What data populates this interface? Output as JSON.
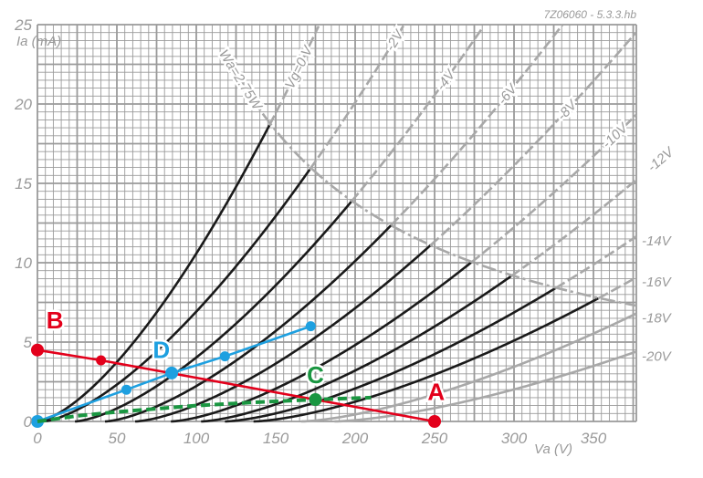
{
  "chart_data": {
    "type": "line",
    "title": "",
    "figure_code": "7Z06060 - 5.3.3.hb",
    "xlabel": "Va (V)",
    "ylabel": "Ia (mA)",
    "xlim": [
      0,
      377
    ],
    "ylim": [
      0,
      25
    ],
    "grid": true,
    "x_ticks": [
      "0",
      "50",
      "100",
      "150",
      "200",
      "250",
      "300",
      "350"
    ],
    "y_ticks": [
      "0",
      "5",
      "10",
      "15",
      "20",
      "25"
    ],
    "dissipation_curve": {
      "label": "Wa=2.75W",
      "watts": 2.75
    },
    "grid_curves": [
      {
        "vg": "Vg=0 V",
        "start_va": 0,
        "ref_va": 147,
        "ref_ia": 18.85
      },
      {
        "vg": "-2V",
        "start_va": 3.4,
        "ref_va": 173,
        "ref_ia": 16.1
      },
      {
        "vg": "-4V",
        "start_va": 23.6,
        "ref_va": 198,
        "ref_ia": 13.9
      },
      {
        "vg": "-6V",
        "start_va": 42.5,
        "ref_va": 223,
        "ref_ia": 12.4
      },
      {
        "vg": "-8V",
        "start_va": 61.5,
        "ref_va": 248,
        "ref_ia": 11.15
      },
      {
        "vg": "-10V",
        "start_va": 84,
        "ref_va": 273.6,
        "ref_ia": 10.06
      },
      {
        "vg": "-12V",
        "start_va": 103,
        "ref_va": 298,
        "ref_ia": 9.14
      },
      {
        "vg": "-14V",
        "start_va": 118,
        "ref_va": 326,
        "ref_ia": 8.39
      },
      {
        "vg": "-16V",
        "start_va": 136,
        "ref_va": 352,
        "ref_ia": 7.7
      },
      {
        "vg": "-18V",
        "start_va": 166,
        "ref_va": 377,
        "ref_ia": 6.8
      },
      {
        "vg": "-20V",
        "start_va": 187,
        "ref_va": 377,
        "ref_ia": 4.4
      }
    ],
    "series": [
      {
        "name": "load-line-AB",
        "color": "#e3001b",
        "points": [
          [
            0,
            4.5
          ],
          [
            40,
            3.85
          ],
          [
            250,
            0
          ]
        ],
        "markers": [
          [
            0,
            4.5
          ],
          [
            40,
            3.85
          ],
          [
            250,
            0
          ]
        ]
      },
      {
        "name": "line-D",
        "color": "#1ea0e0",
        "points": [
          [
            0,
            0
          ],
          [
            56,
            2.0
          ],
          [
            84.5,
            3.05
          ],
          [
            118,
            4.1
          ],
          [
            172,
            6.0
          ]
        ]
      },
      {
        "name": "curve-C",
        "color": "#1a9641",
        "dashed": true,
        "points": [
          [
            0,
            0
          ],
          [
            25,
            0.35
          ],
          [
            50,
            0.6
          ],
          [
            100,
            1.0
          ],
          [
            140,
            1.22
          ],
          [
            175,
            1.38
          ],
          [
            210,
            1.5
          ]
        ],
        "markers": [
          [
            175,
            1.38
          ]
        ]
      }
    ],
    "annotations": [
      {
        "text": "A",
        "color": "#e3001b",
        "va": 251,
        "ia": 1.35
      },
      {
        "text": "B",
        "color": "#e3001b",
        "va": 11,
        "ia": 5.85
      },
      {
        "text": "C",
        "color": "#1a9641",
        "va": 175,
        "ia": 2.4
      },
      {
        "text": "D",
        "color": "#1ea0e0",
        "va": 78,
        "ia": 4.0
      }
    ]
  }
}
